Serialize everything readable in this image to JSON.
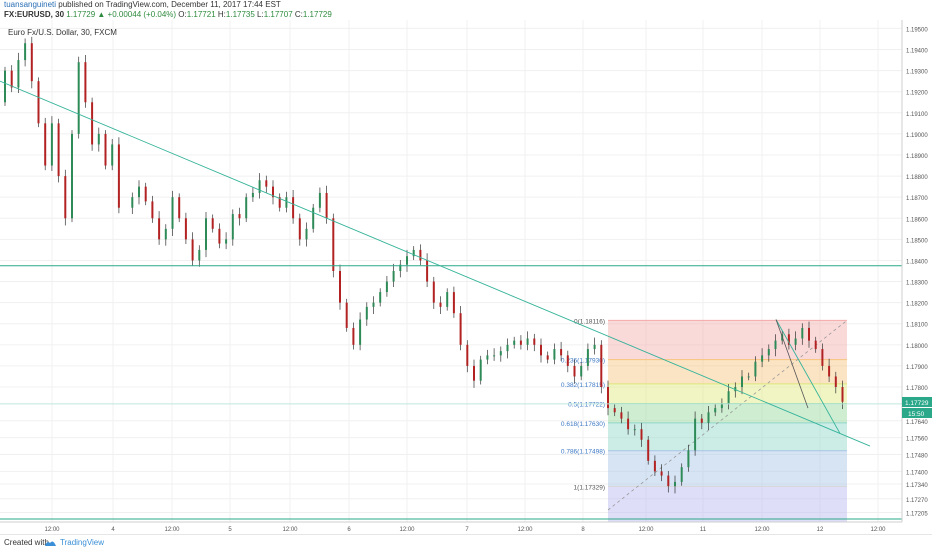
{
  "header": {
    "author": "tuansanguineti",
    "published_text": "published on TradingView.com, December 11, 2017 17:44 EST",
    "symbol": "FX:EURUSD, 30",
    "last": "1.17729",
    "change": "▲ +0.00044 (+0.04%)",
    "o_label": "O:",
    "o_value": "1.17721",
    "h_label": "H:",
    "h_value": "1.17735",
    "l_label": "L:",
    "l_value": "1.17707",
    "c_label": "C:",
    "c_value": "1.17729"
  },
  "footer": {
    "created_with": "Created with",
    "brand": "TradingView"
  },
  "chart_data": {
    "type": "candlestick",
    "title": "Euro Fx/U.S. Dollar, 30, FXCM",
    "ylim": [
      1.1716,
      1.1954
    ],
    "y_ticks": [
      "1.19500",
      "1.19400",
      "1.19300",
      "1.19200",
      "1.19100",
      "1.19000",
      "1.18900",
      "1.18800",
      "1.18700",
      "1.18600",
      "1.18500",
      "1.18400",
      "1.18300",
      "1.18200",
      "1.18100",
      "1.18000",
      "1.17900",
      "1.17800",
      "1.17640",
      "1.17560",
      "1.17480",
      "1.17400",
      "1.17340",
      "1.17270",
      "1.17205"
    ],
    "x_ticks": [
      "12:00",
      "4",
      "12:00",
      "5",
      "12:00",
      "6",
      "12:00",
      "7",
      "12:00",
      "8",
      "12:00",
      "11",
      "12:00",
      "12",
      "12:00"
    ],
    "horizontal_level": 1.18375,
    "trendline": {
      "from": "Dec 1 ~00:00 @ 1.1925",
      "to": "Dec 12 ~12:00 @ 1.1757"
    },
    "fibonacci": [
      {
        "label": "0(1.18116)",
        "level": 1.18116,
        "color": "#f4aaaa"
      },
      {
        "label": "0.236(1.17930)",
        "level": 1.1793,
        "color": "#f7c47c"
      },
      {
        "label": "0.382(1.17815)",
        "level": 1.17815,
        "color": "#dde87a"
      },
      {
        "label": "0.5(1.17722)",
        "level": 1.17722,
        "color": "#94d89a"
      },
      {
        "label": "0.618(1.17630)",
        "level": 1.1763,
        "color": "#8ed6c8"
      },
      {
        "label": "0.786(1.17498)",
        "level": 1.17498,
        "color": "#a7c3e6"
      },
      {
        "label": "1(1.17329)",
        "level": 1.17329,
        "color": "#d7d7d7"
      }
    ],
    "last_price_label": "1.17729",
    "countdown_label": "15:50",
    "price_path": [
      [
        0,
        1.1915
      ],
      [
        2,
        1.193
      ],
      [
        4,
        1.1922
      ],
      [
        6,
        1.1935
      ],
      [
        8,
        1.1943
      ],
      [
        10,
        1.1925
      ],
      [
        12,
        1.1905
      ],
      [
        14,
        1.1885
      ],
      [
        16,
        1.1905
      ],
      [
        18,
        1.188
      ],
      [
        20,
        1.186
      ],
      [
        22,
        1.19
      ],
      [
        24,
        1.1934
      ],
      [
        26,
        1.1915
      ],
      [
        28,
        1.1895
      ],
      [
        30,
        1.19
      ],
      [
        32,
        1.1885
      ],
      [
        34,
        1.1895
      ],
      [
        38,
        1.1865
      ],
      [
        40,
        1.187
      ],
      [
        42,
        1.1875
      ],
      [
        44,
        1.1868
      ],
      [
        46,
        1.186
      ],
      [
        48,
        1.185
      ],
      [
        50,
        1.1855
      ],
      [
        52,
        1.187
      ],
      [
        54,
        1.186
      ],
      [
        56,
        1.185
      ],
      [
        58,
        1.184
      ],
      [
        60,
        1.1845
      ],
      [
        62,
        1.186
      ],
      [
        64,
        1.1855
      ],
      [
        66,
        1.1848
      ],
      [
        68,
        1.185
      ],
      [
        70,
        1.1862
      ],
      [
        72,
        1.186
      ],
      [
        74,
        1.187
      ],
      [
        76,
        1.1872
      ],
      [
        78,
        1.1878
      ],
      [
        80,
        1.1875
      ],
      [
        82,
        1.187
      ],
      [
        84,
        1.1865
      ],
      [
        86,
        1.187
      ],
      [
        88,
        1.186
      ],
      [
        90,
        1.185
      ],
      [
        92,
        1.1855
      ],
      [
        94,
        1.1865
      ],
      [
        96,
        1.1872
      ],
      [
        98,
        1.186
      ],
      [
        100,
        1.1835
      ],
      [
        102,
        1.182
      ],
      [
        104,
        1.1808
      ],
      [
        106,
        1.18
      ],
      [
        108,
        1.1812
      ],
      [
        110,
        1.1818
      ],
      [
        112,
        1.182
      ],
      [
        114,
        1.1825
      ],
      [
        116,
        1.183
      ],
      [
        118,
        1.1835
      ],
      [
        120,
        1.1838
      ],
      [
        122,
        1.1842
      ],
      [
        124,
        1.1845
      ],
      [
        126,
        1.184
      ],
      [
        128,
        1.183
      ],
      [
        130,
        1.182
      ],
      [
        132,
        1.1818
      ],
      [
        134,
        1.1825
      ],
      [
        136,
        1.1815
      ],
      [
        138,
        1.18
      ],
      [
        140,
        1.179
      ],
      [
        142,
        1.1783
      ],
      [
        144,
        1.1793
      ],
      [
        146,
        1.1795
      ],
      [
        148,
        1.1795
      ],
      [
        150,
        1.1797
      ],
      [
        152,
        1.18
      ],
      [
        154,
        1.1802
      ],
      [
        156,
        1.18
      ],
      [
        158,
        1.1803
      ],
      [
        160,
        1.18
      ],
      [
        162,
        1.1795
      ],
      [
        164,
        1.1793
      ],
      [
        166,
        1.1798
      ],
      [
        168,
        1.1795
      ],
      [
        170,
        1.179
      ],
      [
        172,
        1.1785
      ],
      [
        174,
        1.179
      ],
      [
        176,
        1.1798
      ],
      [
        178,
        1.18
      ],
      [
        180,
        1.178
      ],
      [
        182,
        1.177
      ],
      [
        184,
        1.1768
      ],
      [
        186,
        1.1765
      ],
      [
        188,
        1.176
      ],
      [
        190,
        1.176
      ],
      [
        192,
        1.1755
      ],
      [
        194,
        1.1745
      ],
      [
        196,
        1.174
      ],
      [
        198,
        1.1738
      ],
      [
        200,
        1.1733
      ],
      [
        202,
        1.1735
      ],
      [
        204,
        1.1742
      ],
      [
        206,
        1.175
      ],
      [
        208,
        1.1765
      ],
      [
        210,
        1.1763
      ],
      [
        212,
        1.1768
      ],
      [
        214,
        1.177
      ],
      [
        216,
        1.1772
      ],
      [
        218,
        1.1778
      ],
      [
        220,
        1.178
      ],
      [
        222,
        1.1785
      ],
      [
        224,
        1.1785
      ],
      [
        226,
        1.1792
      ],
      [
        228,
        1.1795
      ],
      [
        230,
        1.1798
      ],
      [
        232,
        1.1802
      ],
      [
        234,
        1.1805
      ],
      [
        236,
        1.18
      ],
      [
        238,
        1.1803
      ],
      [
        240,
        1.1808
      ],
      [
        242,
        1.1802
      ],
      [
        244,
        1.1798
      ],
      [
        246,
        1.179
      ],
      [
        248,
        1.1785
      ],
      [
        250,
        1.178
      ],
      [
        252,
        1.1773
      ]
    ]
  }
}
